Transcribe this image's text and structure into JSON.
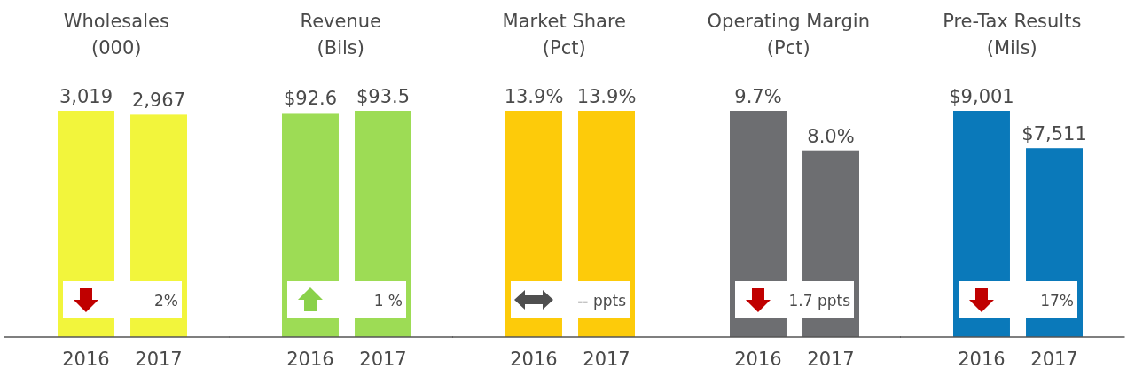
{
  "chart_data": [
    {
      "type": "bar",
      "title": "Wholesales",
      "subtitle": "(000)",
      "categories": [
        "2016",
        "2017"
      ],
      "values": [
        3019,
        2967
      ],
      "value_labels": [
        "3,019",
        "2,967"
      ],
      "color": "#f2f53c",
      "annotations": [
        "2%"
      ]
    },
    {
      "type": "bar",
      "title": "Revenue",
      "subtitle": "(Bils)",
      "categories": [
        "2016",
        "2017"
      ],
      "values": [
        92.6,
        93.5
      ],
      "value_labels": [
        "$92.6",
        "$93.5"
      ],
      "color": "#9ddc55",
      "annotations": [
        "1 %"
      ]
    },
    {
      "type": "bar",
      "title": "Market Share",
      "subtitle": "(Pct)",
      "categories": [
        "2016",
        "2017"
      ],
      "values": [
        13.9,
        13.9
      ],
      "value_labels": [
        "13.9%",
        "13.9%"
      ],
      "color": "#fdcb0a",
      "annotations": [
        "-- ppts"
      ]
    },
    {
      "type": "bar",
      "title": "Operating Margin",
      "subtitle": "(Pct)",
      "categories": [
        "2016",
        "2017"
      ],
      "values": [
        9.7,
        8.0
      ],
      "value_labels": [
        "9.7%",
        "8.0%"
      ],
      "color": "#6d6e71",
      "annotations": [
        "1.7 ppts"
      ]
    },
    {
      "type": "bar",
      "title": "Pre-Tax Results",
      "subtitle": "(Mils)",
      "categories": [
        "2016",
        "2017"
      ],
      "values": [
        9001,
        7511
      ],
      "value_labels": [
        "$9,001",
        "$7,511"
      ],
      "color": "#0a79ba",
      "annotations": [
        "17%"
      ]
    }
  ]
}
